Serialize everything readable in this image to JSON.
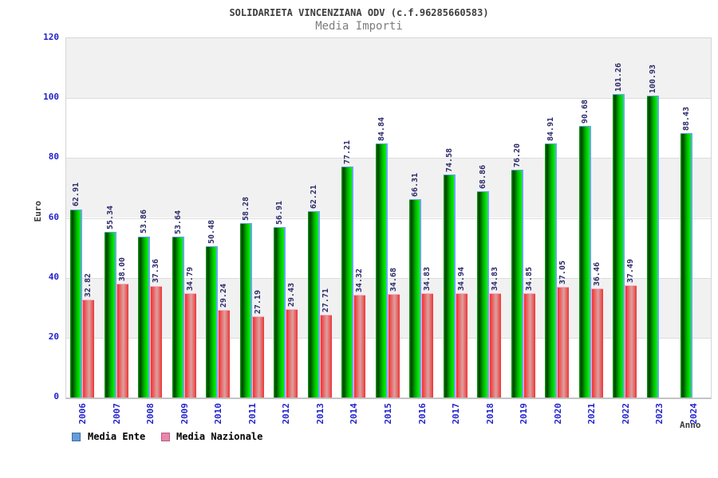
{
  "header": {
    "title": "SOLIDARIETA VINCENZIANA ODV (c.f.96285660583)",
    "subtitle": "Media Importi"
  },
  "axes": {
    "y_label": "Euro",
    "x_label": "Anno",
    "y_ticks": [
      0,
      20,
      40,
      60,
      80,
      100,
      120
    ]
  },
  "legend": {
    "items": [
      {
        "label": "Media Ente",
        "swatch_color": "#649cd8"
      },
      {
        "label": "Media Nazionale",
        "swatch_color": "#ea86ab"
      }
    ]
  },
  "chart_data": {
    "type": "bar",
    "title": "SOLIDARIETA VINCENZIANA ODV (c.f.96285660583)",
    "subtitle": "Media Importi",
    "xlabel": "Anno",
    "ylabel": "Euro",
    "ylim": [
      0,
      120
    ],
    "yticks": [
      0,
      20,
      40,
      60,
      80,
      100,
      120
    ],
    "grid": true,
    "alternating_bands": true,
    "legend_position": "bottom-left",
    "categories": [
      2006,
      2007,
      2008,
      2009,
      2010,
      2011,
      2012,
      2013,
      2014,
      2015,
      2016,
      2017,
      2018,
      2019,
      2020,
      2021,
      2022,
      2023,
      2024
    ],
    "series": [
      {
        "name": "Media Ente",
        "bar_color": "#00cc00",
        "values": [
          62.91,
          55.34,
          53.86,
          53.64,
          50.48,
          58.28,
          56.91,
          62.21,
          77.21,
          84.84,
          66.31,
          74.58,
          68.86,
          76.2,
          84.91,
          90.68,
          101.26,
          100.93,
          88.43
        ]
      },
      {
        "name": "Media Nazionale",
        "bar_color": "#ee3333",
        "values": [
          32.82,
          38.0,
          37.36,
          34.79,
          29.24,
          27.19,
          29.43,
          27.71,
          34.32,
          34.68,
          34.83,
          34.94,
          34.83,
          34.85,
          37.05,
          36.46,
          37.49,
          null,
          null
        ]
      }
    ]
  },
  "colors": {
    "tick_label": "#2222cc",
    "value_label": "#2a2a6a",
    "title": "#3d3d3d",
    "subtitle": "#7e7e7e",
    "band_gray": "#f1f1f1",
    "green_edge": "#6aa7f8",
    "red_edge": "#ffaec6"
  }
}
